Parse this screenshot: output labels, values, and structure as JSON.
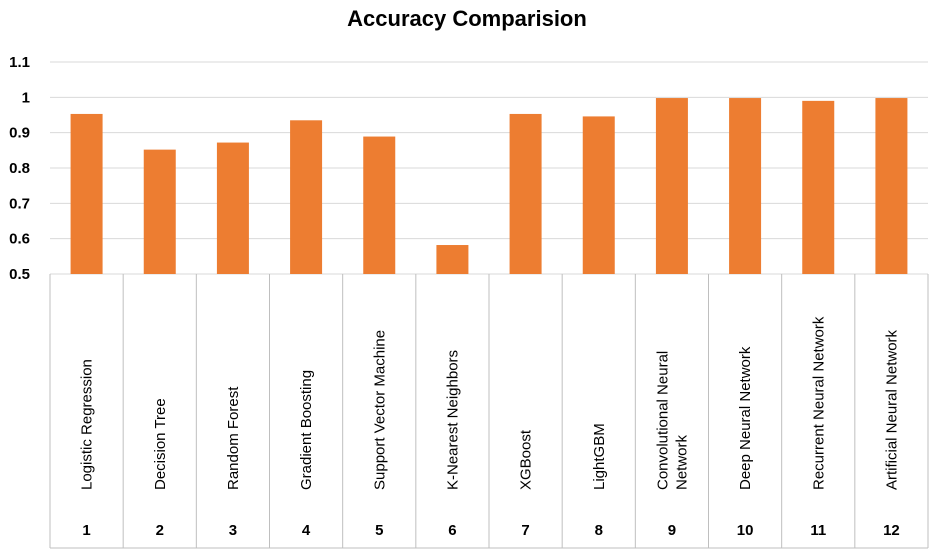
{
  "chart_data": {
    "type": "bar",
    "title": "Accuracy Comparision",
    "categories": [
      {
        "num": "1",
        "label": [
          "Logistic Regression"
        ]
      },
      {
        "num": "2",
        "label": [
          "Decision Tree"
        ]
      },
      {
        "num": "3",
        "label": [
          "Random Forest"
        ]
      },
      {
        "num": "4",
        "label": [
          "Gradient Boosting"
        ]
      },
      {
        "num": "5",
        "label": [
          "Support Vector Machine"
        ]
      },
      {
        "num": "6",
        "label": [
          "K-Nearest Neighbors"
        ]
      },
      {
        "num": "7",
        "label": [
          "XGBoost"
        ]
      },
      {
        "num": "8",
        "label": [
          "LightGBM"
        ]
      },
      {
        "num": "9",
        "label": [
          "Convolutional Neural",
          "Network"
        ]
      },
      {
        "num": "10",
        "label": [
          "Deep Neural Network"
        ]
      },
      {
        "num": "11",
        "label": [
          "Recurrent Neural Network"
        ]
      },
      {
        "num": "12",
        "label": [
          "Artificial Neural Network"
        ]
      }
    ],
    "values": [
      0.953,
      0.852,
      0.872,
      0.935,
      0.889,
      0.582,
      0.953,
      0.946,
      0.998,
      0.998,
      0.99,
      0.998
    ],
    "ylim": [
      0.5,
      1.1
    ],
    "yticks": [
      "0.5",
      "0.6",
      "0.7",
      "0.8",
      "0.9",
      "1",
      "1.1"
    ],
    "grid": true,
    "bar_color": "#ED7D31"
  }
}
